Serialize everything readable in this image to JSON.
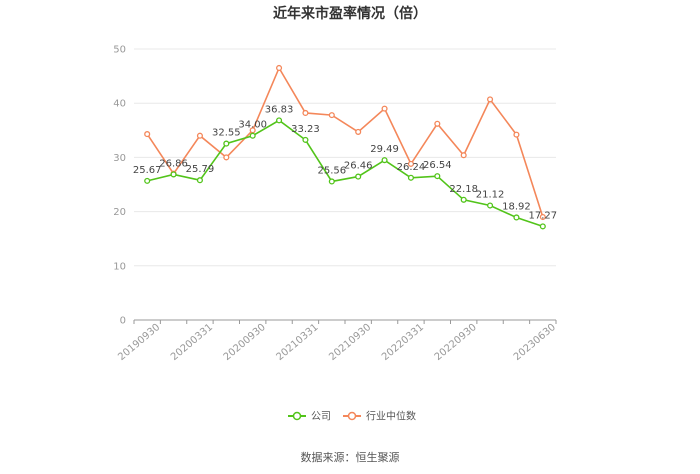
{
  "chart_data": {
    "type": "line",
    "title": "近年来市盈率情况（倍）",
    "source": "数据来源：恒生聚源",
    "ylim": [
      0,
      50
    ],
    "yticks": [
      0,
      10,
      20,
      30,
      40,
      50
    ],
    "grid": true,
    "legend_position": "bottom",
    "x_tick_labels": [
      "20190930",
      "20200331",
      "20200930",
      "20210331",
      "20210930",
      "20220331",
      "20220930",
      "20230630"
    ],
    "x": [
      "20190930",
      "20191231",
      "20200331",
      "20200630",
      "20200930",
      "20201231",
      "20210331",
      "20210630",
      "20210930",
      "20211231",
      "20220331",
      "20220630",
      "20220930",
      "20221231",
      "20230331",
      "20230630"
    ],
    "series": [
      {
        "name": "公司",
        "color": "#52c41a",
        "values": [
          25.67,
          26.86,
          25.79,
          32.55,
          34.0,
          36.83,
          33.23,
          25.56,
          26.46,
          29.49,
          26.24,
          26.54,
          22.18,
          21.12,
          18.92,
          17.27
        ],
        "labels": [
          "25.67",
          "26.86",
          "25.79",
          "32.55",
          "34.00",
          "36.83",
          "33.23",
          "25.56",
          "26.46",
          "29.49",
          "26.24",
          "26.54",
          "22.18",
          "21.12",
          "18.92",
          "17.27"
        ]
      },
      {
        "name": "行业中位数",
        "color": "#f4875a",
        "values": [
          34.3,
          27.0,
          34.0,
          30.0,
          35.0,
          46.5,
          38.2,
          37.8,
          34.7,
          39.0,
          28.8,
          36.2,
          30.4,
          40.7,
          34.2,
          19.0
        ]
      }
    ]
  }
}
